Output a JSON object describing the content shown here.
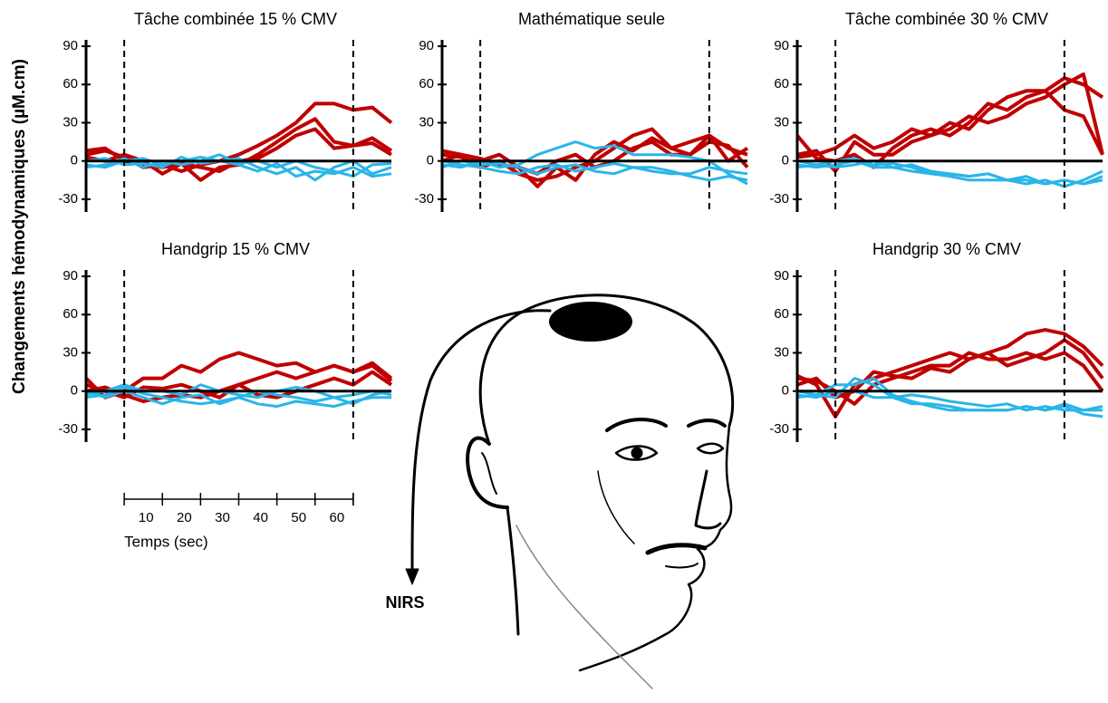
{
  "chart_data": [
    {
      "type": "line",
      "title": "Tâche combinée 15 % CMV",
      "xlim": [
        -10,
        70
      ],
      "ylim": [
        -40,
        95
      ],
      "yticks": [
        -30,
        0,
        30,
        60,
        90
      ],
      "events": [
        0,
        60
      ],
      "x": [
        -10,
        -5,
        0,
        5,
        10,
        15,
        20,
        25,
        30,
        35,
        40,
        45,
        50,
        55,
        60,
        65,
        70
      ],
      "series": [
        {
          "color": "#c00000",
          "values": [
            5,
            8,
            3,
            -5,
            -3,
            -8,
            -3,
            0,
            5,
            12,
            20,
            30,
            45,
            45,
            40,
            42,
            30
          ]
        },
        {
          "color": "#c00000",
          "values": [
            3,
            0,
            5,
            0,
            -10,
            -2,
            -15,
            -5,
            -3,
            5,
            15,
            25,
            33,
            15,
            12,
            18,
            8
          ]
        },
        {
          "color": "#c00000",
          "values": [
            8,
            10,
            0,
            -3,
            -5,
            -2,
            -5,
            -8,
            0,
            2,
            10,
            20,
            25,
            10,
            12,
            14,
            5
          ]
        },
        {
          "color": "#29b5e8",
          "values": [
            -3,
            -5,
            0,
            2,
            -3,
            0,
            3,
            0,
            2,
            -5,
            -10,
            -5,
            -15,
            -5,
            0,
            -10,
            -5
          ]
        },
        {
          "color": "#29b5e8",
          "values": [
            0,
            2,
            -3,
            -2,
            -5,
            3,
            -2,
            0,
            -3,
            -8,
            -2,
            -12,
            -8,
            -10,
            -5,
            -12,
            -10
          ]
        },
        {
          "color": "#29b5e8",
          "values": [
            -5,
            -3,
            2,
            -5,
            0,
            -3,
            0,
            5,
            -2,
            0,
            -5,
            0,
            -5,
            -8,
            -12,
            -3,
            -2
          ]
        }
      ]
    },
    {
      "type": "line",
      "title": "Mathématique seule",
      "xlim": [
        -10,
        70
      ],
      "ylim": [
        -40,
        95
      ],
      "yticks": [
        -30,
        0,
        30,
        60,
        90
      ],
      "events": [
        0,
        60
      ],
      "x": [
        -10,
        -5,
        0,
        5,
        10,
        15,
        20,
        25,
        30,
        35,
        40,
        45,
        50,
        55,
        60,
        65,
        70
      ],
      "series": [
        {
          "color": "#c00000",
          "values": [
            5,
            3,
            -5,
            0,
            -10,
            -15,
            -12,
            -5,
            0,
            10,
            20,
            25,
            10,
            15,
            20,
            10,
            5
          ]
        },
        {
          "color": "#c00000",
          "values": [
            8,
            5,
            2,
            -3,
            -5,
            -20,
            -5,
            -15,
            5,
            15,
            8,
            18,
            10,
            5,
            15,
            12,
            -5
          ]
        },
        {
          "color": "#c00000",
          "values": [
            0,
            5,
            0,
            5,
            -5,
            -10,
            0,
            5,
            -5,
            0,
            10,
            15,
            5,
            5,
            20,
            0,
            10
          ]
        },
        {
          "color": "#29b5e8",
          "values": [
            -3,
            -5,
            0,
            -5,
            -3,
            5,
            10,
            15,
            10,
            12,
            5,
            5,
            5,
            3,
            0,
            -10,
            -18
          ]
        },
        {
          "color": "#29b5e8",
          "values": [
            0,
            -3,
            -5,
            -8,
            -10,
            -5,
            -3,
            -8,
            -5,
            -2,
            -5,
            -8,
            -10,
            -10,
            -5,
            -8,
            -10
          ]
        },
        {
          "color": "#29b5e8",
          "values": [
            -5,
            0,
            -3,
            -2,
            -5,
            -10,
            -5,
            -3,
            -8,
            -10,
            -5,
            -5,
            -8,
            -12,
            -15,
            -12,
            -15
          ]
        }
      ]
    },
    {
      "type": "line",
      "title": "Tâche combinée 30 % CMV",
      "xlim": [
        -10,
        70
      ],
      "ylim": [
        -40,
        95
      ],
      "yticks": [
        -30,
        0,
        30,
        60,
        90
      ],
      "events": [
        0,
        60
      ],
      "x": [
        -10,
        -5,
        0,
        5,
        10,
        15,
        20,
        25,
        30,
        35,
        40,
        45,
        50,
        55,
        60,
        65,
        70
      ],
      "series": [
        {
          "color": "#c00000",
          "values": [
            20,
            2,
            0,
            5,
            -5,
            10,
            20,
            25,
            20,
            30,
            45,
            40,
            50,
            55,
            65,
            60,
            50
          ]
        },
        {
          "color": "#c00000",
          "values": [
            5,
            8,
            -8,
            15,
            5,
            5,
            15,
            20,
            25,
            35,
            30,
            35,
            45,
            50,
            60,
            68,
            5
          ]
        },
        {
          "color": "#c00000",
          "values": [
            3,
            5,
            10,
            20,
            10,
            15,
            25,
            20,
            30,
            25,
            40,
            50,
            55,
            55,
            40,
            35,
            5
          ]
        },
        {
          "color": "#29b5e8",
          "values": [
            -3,
            -5,
            -3,
            0,
            -5,
            -5,
            -3,
            -8,
            -10,
            -12,
            -10,
            -15,
            -15,
            -18,
            -15,
            -18,
            -12
          ]
        },
        {
          "color": "#29b5e8",
          "values": [
            -5,
            -3,
            0,
            2,
            -3,
            -2,
            -5,
            -10,
            -12,
            -15,
            -15,
            -15,
            -18,
            -15,
            -20,
            -15,
            -8
          ]
        },
        {
          "color": "#29b5e8",
          "values": [
            0,
            -3,
            -5,
            -3,
            0,
            -5,
            -8,
            -10,
            -10,
            -12,
            -10,
            -15,
            -12,
            -18,
            -15,
            -18,
            -15
          ]
        }
      ]
    },
    {
      "type": "line",
      "title": "Handgrip 15 % CMV",
      "xlim": [
        -10,
        70
      ],
      "ylim": [
        -40,
        95
      ],
      "yticks": [
        -30,
        0,
        30,
        60,
        90
      ],
      "events": [
        0,
        60
      ],
      "x": [
        -10,
        -5,
        0,
        5,
        10,
        15,
        20,
        25,
        30,
        35,
        40,
        45,
        50,
        55,
        60,
        65,
        70
      ],
      "series": [
        {
          "color": "#c00000",
          "values": [
            10,
            -5,
            0,
            10,
            10,
            20,
            15,
            25,
            30,
            25,
            20,
            22,
            15,
            20,
            15,
            22,
            10
          ]
        },
        {
          "color": "#c00000",
          "values": [
            5,
            0,
            -5,
            3,
            2,
            5,
            0,
            -5,
            5,
            10,
            15,
            10,
            15,
            20,
            15,
            20,
            8
          ]
        },
        {
          "color": "#c00000",
          "values": [
            0,
            3,
            -3,
            -8,
            -5,
            -3,
            -5,
            0,
            5,
            -3,
            -5,
            0,
            5,
            10,
            5,
            15,
            5
          ]
        },
        {
          "color": "#29b5e8",
          "values": [
            -5,
            -3,
            3,
            -2,
            -5,
            -8,
            -10,
            -8,
            -5,
            -10,
            -12,
            -8,
            -10,
            -12,
            -8,
            -5,
            -5
          ]
        },
        {
          "color": "#29b5e8",
          "values": [
            0,
            -5,
            0,
            -5,
            -10,
            -5,
            -3,
            -10,
            -5,
            0,
            -3,
            -5,
            -8,
            -5,
            -3,
            0,
            -3
          ]
        },
        {
          "color": "#29b5e8",
          "values": [
            -3,
            0,
            5,
            0,
            0,
            -3,
            5,
            0,
            -3,
            -5,
            0,
            3,
            0,
            -5,
            -10,
            -3,
            0
          ]
        }
      ]
    },
    {
      "type": "line",
      "title": "Handgrip 30 % CMV",
      "xlim": [
        -10,
        70
      ],
      "ylim": [
        -40,
        95
      ],
      "yticks": [
        -30,
        0,
        30,
        60,
        90
      ],
      "events": [
        0,
        60
      ],
      "x": [
        -10,
        -5,
        0,
        5,
        10,
        15,
        20,
        25,
        30,
        35,
        40,
        45,
        50,
        55,
        60,
        65,
        70
      ],
      "series": [
        {
          "color": "#c00000",
          "values": [
            12,
            5,
            -20,
            5,
            10,
            15,
            20,
            25,
            30,
            25,
            30,
            35,
            45,
            48,
            45,
            35,
            20
          ]
        },
        {
          "color": "#c00000",
          "values": [
            10,
            8,
            0,
            -10,
            5,
            10,
            15,
            20,
            20,
            30,
            25,
            25,
            30,
            25,
            30,
            20,
            0
          ]
        },
        {
          "color": "#c00000",
          "values": [
            5,
            10,
            -5,
            0,
            15,
            12,
            10,
            18,
            15,
            25,
            30,
            20,
            25,
            30,
            40,
            30,
            10
          ]
        },
        {
          "color": "#29b5e8",
          "values": [
            -5,
            -3,
            -5,
            10,
            5,
            -5,
            -10,
            -10,
            -12,
            -15,
            -15,
            -15,
            -12,
            -15,
            -12,
            -18,
            -20
          ]
        },
        {
          "color": "#29b5e8",
          "values": [
            0,
            -3,
            5,
            5,
            10,
            -3,
            -8,
            -12,
            -15,
            -15,
            -15,
            -15,
            -12,
            -15,
            -10,
            -15,
            -15
          ]
        },
        {
          "color": "#29b5e8",
          "values": [
            -3,
            -5,
            0,
            0,
            -5,
            -5,
            -3,
            -5,
            -8,
            -10,
            -12,
            -10,
            -15,
            -12,
            -15,
            -15,
            -12
          ]
        }
      ]
    }
  ],
  "ylabel": "Changements hémodynamiques (µM.cm)",
  "time_scale": {
    "label": "Temps (sec)",
    "ticks": [
      10,
      20,
      30,
      40,
      50,
      60
    ]
  },
  "probe_label": "NIRS"
}
